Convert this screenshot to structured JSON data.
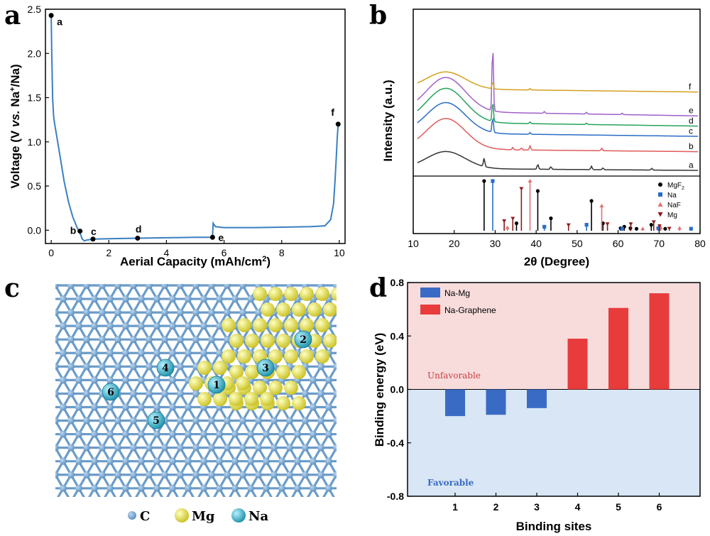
{
  "panels": [
    "a",
    "b",
    "c",
    "d"
  ],
  "chart_data": [
    {
      "id": "a",
      "type": "line",
      "xlabel": "Aerial Capacity (mAh/cm",
      "xlabel_sup": "2",
      "xlabel_end": ")",
      "ylabel_pre": "Voltage (V ",
      "ylabel_vs": "vs.",
      "ylabel_na": " Na",
      "ylabel_sup": "+",
      "ylabel_end": "/Na)",
      "xlim": [
        -0.2,
        10.2
      ],
      "ylim": [
        -0.15,
        2.5
      ],
      "xticks": [
        0,
        2,
        4,
        6,
        8,
        10
      ],
      "yticks": [
        0.0,
        0.5,
        1.0,
        1.5,
        2.0,
        2.5
      ],
      "ytick_labels": [
        "0.0",
        "0.5",
        "1.0",
        "1.5",
        "2.0",
        "2.5"
      ],
      "color": "#3a7fc1",
      "x": [
        0.0,
        0.02,
        0.05,
        0.08,
        0.12,
        0.2,
        0.3,
        0.45,
        0.6,
        0.75,
        0.9,
        1.0,
        1.08,
        1.15,
        1.25,
        1.5,
        2.0,
        3.0,
        4.0,
        5.0,
        5.6,
        5.62,
        5.7,
        6.0,
        7.0,
        8.0,
        9.0,
        9.5,
        9.7,
        9.8,
        9.85,
        9.9,
        9.93,
        9.96
      ],
      "y": [
        2.43,
        2.0,
        1.5,
        1.3,
        1.2,
        1.05,
        0.85,
        0.55,
        0.32,
        0.15,
        0.03,
        -0.03,
        -0.1,
        -0.12,
        -0.11,
        -0.1,
        -0.095,
        -0.09,
        -0.085,
        -0.08,
        -0.08,
        0.08,
        0.04,
        0.03,
        0.03,
        0.035,
        0.04,
        0.05,
        0.12,
        0.3,
        0.55,
        0.85,
        1.05,
        1.2
      ],
      "points": [
        {
          "label": "a",
          "x": 0.0,
          "y": 2.43
        },
        {
          "label": "b",
          "x": 1.0,
          "y": -0.01
        },
        {
          "label": "c",
          "x": 1.45,
          "y": -0.1
        },
        {
          "label": "d",
          "x": 3.0,
          "y": -0.09
        },
        {
          "label": "e",
          "x": 5.6,
          "y": -0.08
        },
        {
          "label": "f",
          "x": 9.96,
          "y": 1.2
        }
      ]
    },
    {
      "id": "b",
      "type": "line",
      "xlabel_pre": "2",
      "xlabel_theta": "θ",
      "xlabel_end": " (Degree)",
      "ylabel": "Intensity (a.u.)",
      "xlim": [
        10,
        80
      ],
      "xticks": [
        10,
        20,
        30,
        40,
        50,
        60,
        70,
        80
      ],
      "hump_center": 18,
      "series": [
        {
          "name": "a",
          "color": "#333333",
          "offset": 0.0,
          "tail": 0.06,
          "hump": 0.5,
          "peaks": [
            [
              27.3,
              0.25
            ],
            [
              40.4,
              0.15
            ],
            [
              43.6,
              0.08
            ],
            [
              53.5,
              0.1
            ],
            [
              56.3,
              0.05
            ],
            [
              68.2,
              0.05
            ]
          ]
        },
        {
          "name": "b",
          "color": "#e05a5a",
          "offset": 0.55,
          "tail": 0.08,
          "hump": 0.9,
          "peaks": [
            [
              34.3,
              0.07
            ],
            [
              36.4,
              0.06
            ],
            [
              38.5,
              0.12
            ],
            [
              56.0,
              0.07
            ]
          ]
        },
        {
          "name": "c",
          "color": "#2b6cc4",
          "offset": 1.0,
          "tail": 0.1,
          "hump": 0.9,
          "peaks": [
            [
              29.4,
              0.45
            ],
            [
              38.5,
              0.05
            ]
          ]
        },
        {
          "name": "d",
          "color": "#27a35a",
          "offset": 1.3,
          "tail": 0.12,
          "hump": 1.0,
          "peaks": [
            [
              29.4,
              0.6
            ],
            [
              38.5,
              0.05
            ],
            [
              52.3,
              0.04
            ]
          ]
        },
        {
          "name": "e",
          "color": "#a060c8",
          "offset": 1.6,
          "tail": 0.14,
          "hump": 1.0,
          "peaks": [
            [
              29.4,
              2.0
            ],
            [
              42.0,
              0.05
            ],
            [
              52.3,
              0.05
            ],
            [
              61.0,
              0.04
            ]
          ]
        },
        {
          "name": "f",
          "color": "#d6a020",
          "offset": 2.3,
          "tail": 0.1,
          "hump": 0.5,
          "peaks": [
            [
              29.4,
              0.2
            ],
            [
              38.5,
              0.04
            ]
          ]
        }
      ],
      "ref_legend": [
        {
          "label_pre": "MgF",
          "label_sub": "2",
          "color": "#000000",
          "marker": "circle"
        },
        {
          "label_pre": "Na",
          "label_sub": "",
          "color": "#2b6cc4",
          "marker": "square"
        },
        {
          "label_pre": "NaF",
          "label_sub": "",
          "color": "#e07070",
          "marker": "triangle-up"
        },
        {
          "label_pre": "Mg",
          "label_sub": "",
          "color": "#8b1a1a",
          "marker": "triangle-down"
        }
      ],
      "ref_sticks": [
        {
          "phase": "MgF2",
          "x": 27.3,
          "h": 1.0
        },
        {
          "phase": "MgF2",
          "x": 35.2,
          "h": 0.15
        },
        {
          "phase": "MgF2",
          "x": 40.4,
          "h": 0.8
        },
        {
          "phase": "MgF2",
          "x": 43.6,
          "h": 0.25
        },
        {
          "phase": "MgF2",
          "x": 53.5,
          "h": 0.6
        },
        {
          "phase": "MgF2",
          "x": 56.3,
          "h": 0.15
        },
        {
          "phase": "MgF2",
          "x": 60.6,
          "h": 0.05
        },
        {
          "phase": "MgF2",
          "x": 61.5,
          "h": 0.08
        },
        {
          "phase": "MgF2",
          "x": 63.0,
          "h": 0.05
        },
        {
          "phase": "MgF2",
          "x": 64.5,
          "h": 0.04
        },
        {
          "phase": "MgF2",
          "x": 68.1,
          "h": 0.12
        },
        {
          "phase": "MgF2",
          "x": 71.5,
          "h": 0.04
        },
        {
          "phase": "Na",
          "x": 29.4,
          "h": 1.0
        },
        {
          "phase": "Na",
          "x": 42.0,
          "h": 0.08
        },
        {
          "phase": "Na",
          "x": 52.3,
          "h": 0.12
        },
        {
          "phase": "Na",
          "x": 61.0,
          "h": 0.04
        },
        {
          "phase": "Na",
          "x": 69.8,
          "h": 0.05
        },
        {
          "phase": "Na",
          "x": 77.8,
          "h": 0.04
        },
        {
          "phase": "NaF",
          "x": 38.5,
          "h": 1.0
        },
        {
          "phase": "NaF",
          "x": 33.0,
          "h": 0.06
        },
        {
          "phase": "NaF",
          "x": 56.0,
          "h": 0.5
        },
        {
          "phase": "NaF",
          "x": 70.4,
          "h": 0.06
        },
        {
          "phase": "NaF",
          "x": 75.0,
          "h": 0.05
        },
        {
          "phase": "NaF",
          "x": 66.0,
          "h": 0.04
        },
        {
          "phase": "Mg",
          "x": 36.4,
          "h": 0.85
        },
        {
          "phase": "Mg",
          "x": 34.3,
          "h": 0.25
        },
        {
          "phase": "Mg",
          "x": 32.2,
          "h": 0.2
        },
        {
          "phase": "Mg",
          "x": 47.9,
          "h": 0.12
        },
        {
          "phase": "Mg",
          "x": 57.4,
          "h": 0.14
        },
        {
          "phase": "Mg",
          "x": 63.1,
          "h": 0.14
        },
        {
          "phase": "Mg",
          "x": 68.7,
          "h": 0.18
        },
        {
          "phase": "Mg",
          "x": 70.1,
          "h": 0.1
        },
        {
          "phase": "Mg",
          "x": 72.5,
          "h": 0.05
        }
      ]
    },
    {
      "id": "d",
      "type": "bar",
      "xlabel": "Binding sites",
      "ylabel": "Binding energy (eV)",
      "categories": [
        "1",
        "2",
        "3",
        "4",
        "5",
        "6"
      ],
      "ylim": [
        -0.8,
        0.8
      ],
      "yticks": [
        "-0.8",
        "-0.4",
        "0.0",
        "0.4",
        "0.8"
      ],
      "series": [
        {
          "name": "Na-Mg",
          "color": "#3a6bc4",
          "values": [
            -0.2,
            -0.19,
            -0.14,
            null,
            null,
            null
          ]
        },
        {
          "name": "Na-Graphene",
          "color": "#e83c3c",
          "values": [
            null,
            null,
            null,
            0.38,
            0.61,
            0.72
          ]
        }
      ],
      "zones": {
        "unfavorable": "Unfavorable",
        "favorable": "Favorable"
      },
      "zone_colors": {
        "unfavorable": "#f8dcdc",
        "favorable": "#d8e6f5"
      }
    }
  ],
  "panel_c": {
    "legend": [
      {
        "label": "C",
        "color": "#6a9bc8"
      },
      {
        "label": "Mg",
        "color": "#e2e050"
      },
      {
        "label": "Na",
        "color": "#2cb8d0"
      }
    ],
    "sites": [
      "1",
      "2",
      "3",
      "4",
      "5",
      "6"
    ]
  }
}
